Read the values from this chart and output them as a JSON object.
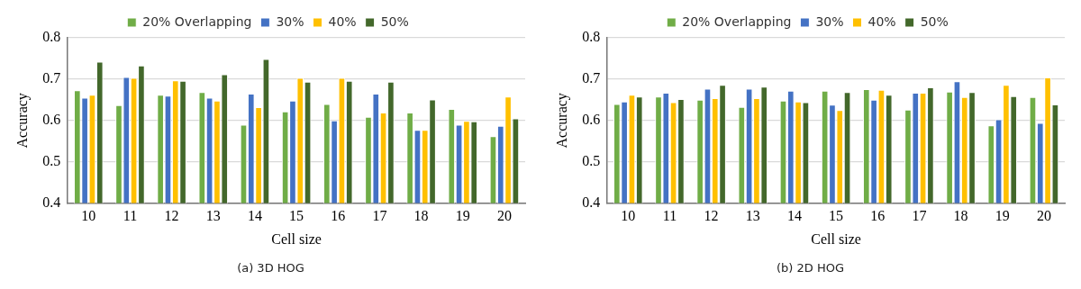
{
  "chart_data": [
    {
      "type": "bar",
      "xlabel": "Cell size",
      "ylabel": "Accuracy",
      "annotations": [
        "(a) 3D HOG"
      ],
      "categories": [
        "10",
        "11",
        "12",
        "13",
        "14",
        "15",
        "16",
        "17",
        "18",
        "19",
        "20"
      ],
      "ylim": [
        0.4,
        0.8
      ],
      "yticks": [
        0.4,
        0.5,
        0.6,
        0.7,
        0.8
      ],
      "grid": "y",
      "legend": "top",
      "series": [
        {
          "name": "20% Overlapping",
          "color": "#70ad47",
          "values": [
            0.673,
            0.637,
            0.662,
            0.669,
            0.59,
            0.622,
            0.64,
            0.609,
            0.619,
            0.628,
            0.562
          ]
        },
        {
          "name": "30%",
          "color": "#4472c4",
          "values": [
            0.655,
            0.705,
            0.66,
            0.655,
            0.665,
            0.648,
            0.6,
            0.665,
            0.577,
            0.59,
            0.587
          ]
        },
        {
          "name": "40%",
          "color": "#ffc000",
          "values": [
            0.662,
            0.703,
            0.697,
            0.648,
            0.632,
            0.703,
            0.703,
            0.619,
            0.577,
            0.599,
            0.658
          ]
        },
        {
          "name": "50%",
          "color": "#43682b",
          "values": [
            0.742,
            0.733,
            0.696,
            0.712,
            0.749,
            0.694,
            0.696,
            0.694,
            0.651,
            0.598,
            0.605
          ]
        }
      ]
    },
    {
      "type": "bar",
      "xlabel": "Cell size",
      "ylabel": "Accuracy",
      "annotations": [
        "(b) 2D HOG"
      ],
      "categories": [
        "10",
        "11",
        "12",
        "13",
        "14",
        "15",
        "16",
        "17",
        "18",
        "19",
        "20"
      ],
      "ylim": [
        0.4,
        0.8
      ],
      "yticks": [
        0.4,
        0.5,
        0.6,
        0.7,
        0.8
      ],
      "grid": "y",
      "legend": "top",
      "series": [
        {
          "name": "20% Overlapping",
          "color": "#70ad47",
          "values": [
            0.64,
            0.658,
            0.65,
            0.633,
            0.648,
            0.672,
            0.676,
            0.626,
            0.67,
            0.588,
            0.657
          ]
        },
        {
          "name": "30%",
          "color": "#4472c4",
          "values": [
            0.646,
            0.667,
            0.677,
            0.677,
            0.672,
            0.638,
            0.65,
            0.667,
            0.695,
            0.603,
            0.594
          ]
        },
        {
          "name": "40%",
          "color": "#ffc000",
          "values": [
            0.662,
            0.644,
            0.654,
            0.654,
            0.646,
            0.625,
            0.674,
            0.667,
            0.657,
            0.686,
            0.704
          ]
        },
        {
          "name": "50%",
          "color": "#43682b",
          "values": [
            0.658,
            0.652,
            0.686,
            0.682,
            0.644,
            0.669,
            0.662,
            0.68,
            0.669,
            0.659,
            0.639
          ]
        }
      ]
    }
  ]
}
